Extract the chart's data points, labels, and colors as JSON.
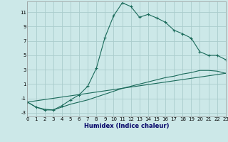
{
  "xlabel": "Humidex (Indice chaleur)",
  "bg_color": "#cce8e8",
  "grid_color": "#aacccc",
  "line_color": "#1a6a5a",
  "xlim": [
    0,
    23
  ],
  "ylim": [
    -3.5,
    12.5
  ],
  "yticks": [
    -3,
    -1,
    1,
    3,
    5,
    7,
    9,
    11
  ],
  "xticks": [
    0,
    1,
    2,
    3,
    4,
    5,
    6,
    7,
    8,
    9,
    10,
    11,
    12,
    13,
    14,
    15,
    16,
    17,
    18,
    19,
    20,
    21,
    22,
    23
  ],
  "series1_x": [
    0,
    1,
    2,
    3,
    4,
    5,
    6,
    7,
    8,
    9,
    10,
    11,
    12,
    13,
    14,
    15,
    16,
    17,
    18,
    19,
    20,
    21,
    22,
    23
  ],
  "series1_y": [
    -1.5,
    -2.2,
    -2.6,
    -2.6,
    -2.0,
    -1.2,
    -0.5,
    0.7,
    3.2,
    7.5,
    10.5,
    12.3,
    11.8,
    10.3,
    10.7,
    10.2,
    9.6,
    8.5,
    8.0,
    7.4,
    5.5,
    5.0,
    5.0,
    4.4
  ],
  "series2_x": [
    0,
    1,
    2,
    3,
    4,
    5,
    6,
    7,
    8,
    9,
    10,
    11,
    12,
    13,
    14,
    15,
    16,
    17,
    18,
    19,
    20,
    21,
    22,
    23
  ],
  "series2_y": [
    -1.5,
    -2.2,
    -2.5,
    -2.6,
    -2.2,
    -1.8,
    -1.5,
    -1.2,
    -0.8,
    -0.4,
    0.0,
    0.4,
    0.7,
    1.0,
    1.3,
    1.6,
    1.9,
    2.1,
    2.4,
    2.6,
    2.9,
    2.9,
    2.8,
    2.5
  ],
  "series3_x": [
    0,
    23
  ],
  "series3_y": [
    -1.5,
    2.5
  ]
}
